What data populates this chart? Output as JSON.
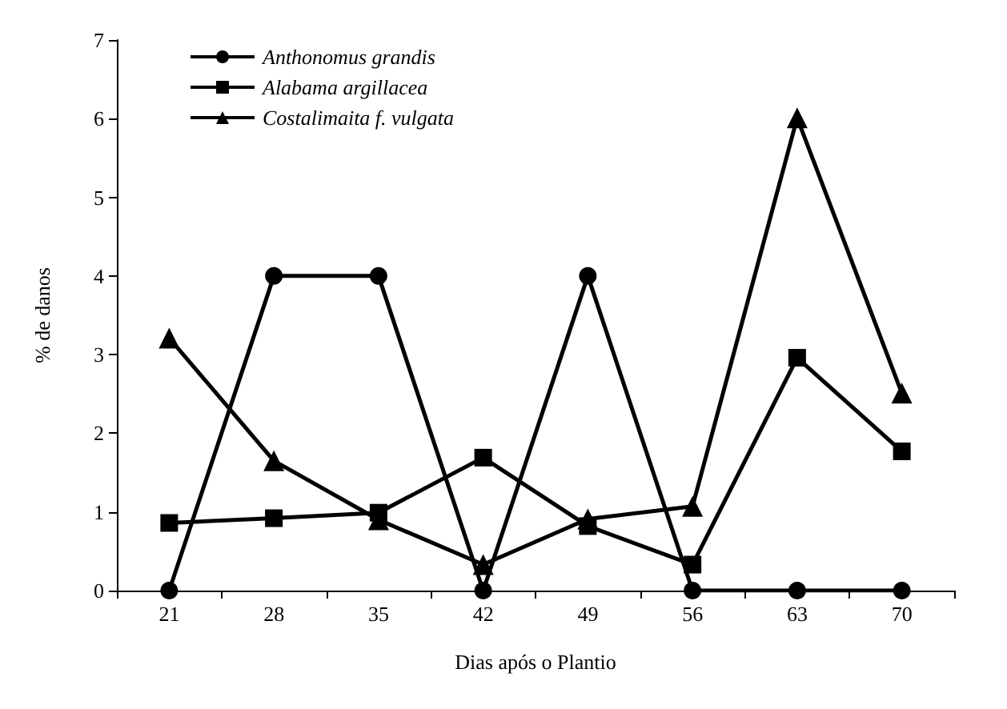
{
  "chart_data": {
    "type": "line",
    "xlabel": "Dias após o Plantio",
    "ylabel": "% de danos",
    "categories": [
      "21",
      "28",
      "35",
      "42",
      "49",
      "56",
      "63",
      "70"
    ],
    "ylim": [
      0,
      7
    ],
    "yticks": [
      0,
      1,
      2,
      3,
      4,
      5,
      6,
      7
    ],
    "grid": false,
    "legend": "top left",
    "line_style": "solid",
    "series": [
      {
        "name": "Anthonomus grandis",
        "color": "#000000",
        "marker": "circle",
        "values": [
          0,
          4,
          4,
          0,
          4,
          0,
          0,
          0
        ]
      },
      {
        "name": "Alabama argillacea",
        "color": "#000000",
        "marker": "square",
        "values": [
          0.86,
          0.92,
          0.99,
          1.69,
          0.82,
          0.33,
          2.96,
          1.77
        ]
      },
      {
        "name": "Costalimaita f. vulgata",
        "color": "#000000",
        "marker": "triangle",
        "values": [
          3.21,
          1.65,
          0.9,
          0.33,
          0.91,
          1.07,
          6.01,
          2.51
        ]
      }
    ]
  }
}
